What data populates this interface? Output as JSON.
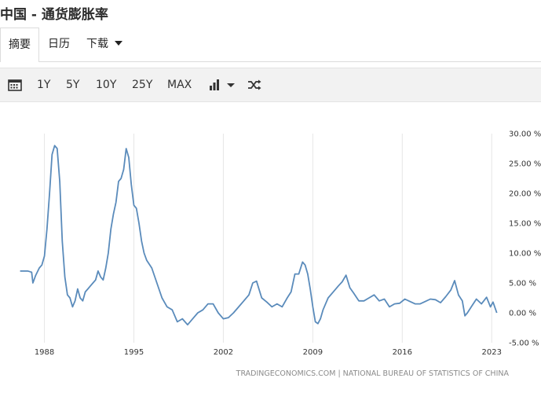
{
  "header": {
    "title": "中国 - 通货膨胀率"
  },
  "tabs": [
    {
      "label": "摘要"
    },
    {
      "label": "日历"
    },
    {
      "label": "下载"
    }
  ],
  "toolbar": {
    "ranges": [
      "1Y",
      "5Y",
      "10Y",
      "25Y",
      "MAX"
    ],
    "icons": [
      "calendar-icon",
      "chart-type-icon",
      "shuffle-icon"
    ]
  },
  "chart_data": {
    "type": "line",
    "title": "",
    "xlabel": "",
    "ylabel": "",
    "x_ticks": [
      "1988",
      "1995",
      "2002",
      "2009",
      "2016",
      "2023"
    ],
    "y_ticks": [
      "30.00 %",
      "25.00 %",
      "20.00 %",
      "15.00 %",
      "10.00 %",
      "5.00 %",
      "0.00 %",
      "-5.00 %"
    ],
    "ylim": [
      -5,
      30
    ],
    "xlim": [
      1986.0,
      2023.6
    ],
    "grid": {
      "horizontal": false,
      "vertical": true
    },
    "source": "TRADINGECONOMICS.COM | NATIONAL BUREAU OF STATISTICS OF CHINA",
    "line_color": "#5a8bbb",
    "series": [
      {
        "x": [
          1986.1,
          1986.7,
          1987.0,
          1987.1,
          1987.3,
          1987.6,
          1987.8,
          1988.0,
          1988.2,
          1988.4,
          1988.6,
          1988.8,
          1989.0,
          1989.2,
          1989.4,
          1989.6,
          1989.8,
          1990.0,
          1990.2,
          1990.4,
          1990.6,
          1990.8,
          1991.0,
          1991.2,
          1991.4,
          1991.6,
          1991.8,
          1992.0,
          1992.2,
          1992.4,
          1992.6,
          1992.8,
          1993.0,
          1993.2,
          1993.4,
          1993.6,
          1993.8,
          1994.0,
          1994.2,
          1994.4,
          1994.6,
          1994.8,
          1995.0,
          1995.2,
          1995.4,
          1995.6,
          1995.8,
          1996.0,
          1996.4,
          1996.8,
          1997.2,
          1997.6,
          1998.0,
          1998.4,
          1998.8,
          1999.2,
          1999.6,
          2000.0,
          2000.4,
          2000.8,
          2001.2,
          2001.6,
          2002.0,
          2002.4,
          2002.8,
          2003.2,
          2003.6,
          2004.0,
          2004.3,
          2004.6,
          2005.0,
          2005.4,
          2005.8,
          2006.2,
          2006.6,
          2007.0,
          2007.3,
          2007.6,
          2007.9,
          2008.2,
          2008.4,
          2008.6,
          2008.8,
          2009.0,
          2009.2,
          2009.4,
          2009.6,
          2009.8,
          2010.2,
          2010.6,
          2011.0,
          2011.3,
          2011.6,
          2011.9,
          2012.2,
          2012.6,
          2013.0,
          2013.4,
          2013.8,
          2014.2,
          2014.6,
          2015.0,
          2015.4,
          2015.8,
          2016.2,
          2016.6,
          2017.0,
          2017.4,
          2017.8,
          2018.2,
          2018.6,
          2019.0,
          2019.4,
          2019.8,
          2020.1,
          2020.4,
          2020.7,
          2020.9,
          2021.1,
          2021.4,
          2021.8,
          2022.2,
          2022.6,
          2022.9,
          2023.1,
          2023.4
        ],
        "y": [
          7.0,
          7.0,
          6.8,
          5.0,
          6.2,
          7.5,
          8.0,
          9.5,
          14.0,
          20.0,
          26.5,
          28.0,
          27.5,
          22.0,
          12.0,
          6.0,
          3.0,
          2.5,
          1.0,
          2.0,
          4.0,
          2.5,
          2.0,
          3.5,
          4.0,
          4.5,
          5.0,
          5.5,
          7.0,
          6.0,
          5.5,
          7.5,
          10.0,
          14.0,
          16.5,
          18.5,
          22.0,
          22.5,
          24.0,
          27.5,
          26.0,
          21.5,
          18.0,
          17.5,
          15.0,
          12.0,
          10.0,
          8.8,
          7.5,
          5.0,
          2.5,
          1.0,
          0.5,
          -1.5,
          -1.0,
          -2.0,
          -1.0,
          0.0,
          0.5,
          1.5,
          1.5,
          0.0,
          -1.0,
          -0.8,
          0.0,
          1.0,
          2.0,
          3.0,
          5.0,
          5.3,
          2.5,
          1.8,
          1.0,
          1.5,
          1.0,
          2.5,
          3.5,
          6.5,
          6.5,
          8.5,
          8.0,
          6.5,
          4.0,
          1.0,
          -1.5,
          -1.8,
          -1.0,
          0.5,
          2.5,
          3.5,
          4.5,
          5.2,
          6.3,
          4.2,
          3.3,
          2.0,
          2.0,
          2.5,
          3.0,
          2.0,
          2.3,
          1.0,
          1.5,
          1.6,
          2.3,
          1.9,
          1.5,
          1.5,
          1.9,
          2.3,
          2.2,
          1.7,
          2.7,
          3.8,
          5.4,
          3.0,
          2.0,
          -0.5,
          0.0,
          1.0,
          2.3,
          1.5,
          2.6,
          1.0,
          1.8,
          0.0
        ]
      }
    ]
  }
}
